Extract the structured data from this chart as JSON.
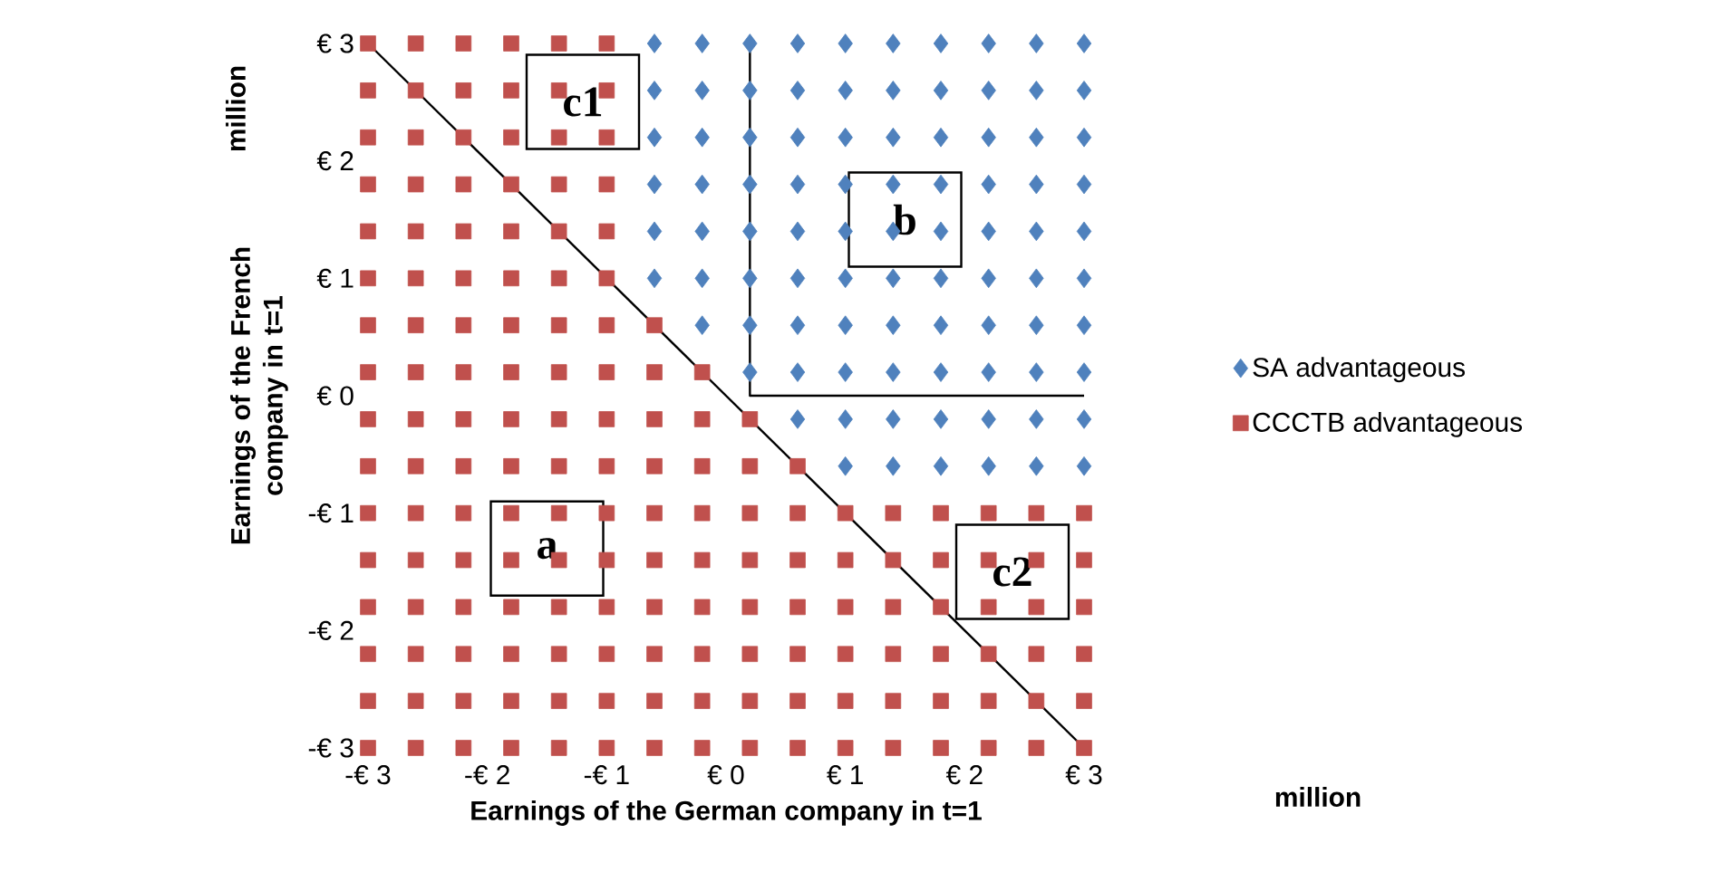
{
  "chart_data": {
    "type": "scatter",
    "xlabel": "Earnings of the German company in t=1",
    "ylabel": "Earnings of the French company in t=1",
    "xlim": [
      -3,
      3
    ],
    "ylim": [
      -3,
      3
    ],
    "xticks": [
      {
        "value": -3,
        "label": "-€ 3"
      },
      {
        "value": -2,
        "label": "-€ 2"
      },
      {
        "value": -1,
        "label": "-€ 1"
      },
      {
        "value": 0,
        "label": "€ 0"
      },
      {
        "value": 1,
        "label": "€ 1"
      },
      {
        "value": 2,
        "label": "€ 2"
      },
      {
        "value": 3,
        "label": "€ 3"
      }
    ],
    "yticks": [
      {
        "value": -3,
        "label": "-€ 3"
      },
      {
        "value": -2,
        "label": "-€ 2"
      },
      {
        "value": -1,
        "label": "-€ 1"
      },
      {
        "value": 0,
        "label": "€ 0"
      },
      {
        "value": 1,
        "label": "€ 1"
      },
      {
        "value": 2,
        "label": "€ 2"
      },
      {
        "value": 3,
        "label": "€ 3"
      }
    ],
    "legend": "right",
    "series": [
      {
        "name": "SA advantageous",
        "color": "#4f81bd",
        "marker": "diamond",
        "x": [
          -0.6,
          -0.6,
          -0.6,
          -0.6,
          -0.6,
          -0.6,
          -0.2,
          -0.2,
          -0.2,
          -0.2,
          -0.2,
          -0.2,
          -0.2,
          0.2,
          0.2,
          0.2,
          0.2,
          0.2,
          0.2,
          0.2,
          0.2,
          0.6,
          0.6,
          0.6,
          0.6,
          0.6,
          0.6,
          0.6,
          0.6,
          0.6,
          1,
          1,
          1,
          1,
          1,
          1,
          1,
          1,
          1,
          1,
          1.4,
          1.4,
          1.4,
          1.4,
          1.4,
          1.4,
          1.4,
          1.4,
          1.4,
          1.4,
          1.8,
          1.8,
          1.8,
          1.8,
          1.8,
          1.8,
          1.8,
          1.8,
          1.8,
          1.8,
          2.2,
          2.2,
          2.2,
          2.2,
          2.2,
          2.2,
          2.2,
          2.2,
          2.2,
          2.2,
          2.6,
          2.6,
          2.6,
          2.6,
          2.6,
          2.6,
          2.6,
          2.6,
          2.6,
          2.6,
          3,
          3,
          3,
          3,
          3,
          3,
          3,
          3,
          3,
          3
        ],
        "values": [
          1,
          1.4,
          1.8,
          2.2,
          2.6,
          3,
          0.6,
          1,
          1.4,
          1.8,
          2.2,
          2.6,
          3,
          0.2,
          0.6,
          1,
          1.4,
          1.8,
          2.2,
          2.6,
          3,
          -0.2,
          0.2,
          0.6,
          1,
          1.4,
          1.8,
          2.2,
          2.6,
          3,
          -0.6,
          -0.2,
          0.2,
          0.6,
          1,
          1.4,
          1.8,
          2.2,
          2.6,
          3,
          -0.6,
          -0.2,
          0.2,
          0.6,
          1,
          1.4,
          1.8,
          2.2,
          2.6,
          3,
          -0.6,
          -0.2,
          0.2,
          0.6,
          1,
          1.4,
          1.8,
          2.2,
          2.6,
          3,
          -0.6,
          -0.2,
          0.2,
          0.6,
          1,
          1.4,
          1.8,
          2.2,
          2.6,
          3,
          -0.6,
          -0.2,
          0.2,
          0.6,
          1,
          1.4,
          1.8,
          2.2,
          2.6,
          3,
          -0.6,
          -0.2,
          0.2,
          0.6,
          1,
          1.4,
          1.8,
          2.2,
          2.6,
          3
        ]
      },
      {
        "name": "CCCTB advantageous",
        "color": "#c0504d",
        "marker": "square",
        "x": [
          -3,
          -3,
          -3,
          -3,
          -3,
          -3,
          -3,
          -3,
          -3,
          -3,
          -3,
          -3,
          -3,
          -3,
          -3,
          -3,
          -2.6,
          -2.6,
          -2.6,
          -2.6,
          -2.6,
          -2.6,
          -2.6,
          -2.6,
          -2.6,
          -2.6,
          -2.6,
          -2.6,
          -2.6,
          -2.6,
          -2.6,
          -2.6,
          -2.2,
          -2.2,
          -2.2,
          -2.2,
          -2.2,
          -2.2,
          -2.2,
          -2.2,
          -2.2,
          -2.2,
          -2.2,
          -2.2,
          -2.2,
          -2.2,
          -2.2,
          -2.2,
          -1.8,
          -1.8,
          -1.8,
          -1.8,
          -1.8,
          -1.8,
          -1.8,
          -1.8,
          -1.8,
          -1.8,
          -1.8,
          -1.8,
          -1.8,
          -1.8,
          -1.8,
          -1.8,
          -1.4,
          -1.4,
          -1.4,
          -1.4,
          -1.4,
          -1.4,
          -1.4,
          -1.4,
          -1.4,
          -1.4,
          -1.4,
          -1.4,
          -1.4,
          -1.4,
          -1.4,
          -1.4,
          -1,
          -1,
          -1,
          -1,
          -1,
          -1,
          -1,
          -1,
          -1,
          -1,
          -1,
          -1,
          -1,
          -1,
          -1,
          -1,
          -0.6,
          -0.6,
          -0.6,
          -0.6,
          -0.6,
          -0.6,
          -0.6,
          -0.6,
          -0.6,
          -0.6,
          -0.2,
          -0.2,
          -0.2,
          -0.2,
          -0.2,
          -0.2,
          -0.2,
          -0.2,
          -0.2,
          0.2,
          0.2,
          0.2,
          0.2,
          0.2,
          0.2,
          0.2,
          0.2,
          0.6,
          0.6,
          0.6,
          0.6,
          0.6,
          0.6,
          0.6,
          1,
          1,
          1,
          1,
          1,
          1,
          1.4,
          1.4,
          1.4,
          1.4,
          1.4,
          1.4,
          1.8,
          1.8,
          1.8,
          1.8,
          1.8,
          1.8,
          2.2,
          2.2,
          2.2,
          2.2,
          2.2,
          2.2,
          2.6,
          2.6,
          2.6,
          2.6,
          2.6,
          2.6,
          3,
          3,
          3,
          3,
          3,
          3
        ],
        "values": [
          -3,
          -2.6,
          -2.2,
          -1.8,
          -1.4,
          -1,
          -0.6,
          -0.2,
          0.2,
          0.6,
          1,
          1.4,
          1.8,
          2.2,
          2.6,
          3,
          -3,
          -2.6,
          -2.2,
          -1.8,
          -1.4,
          -1,
          -0.6,
          -0.2,
          0.2,
          0.6,
          1,
          1.4,
          1.8,
          2.2,
          2.6,
          3,
          -3,
          -2.6,
          -2.2,
          -1.8,
          -1.4,
          -1,
          -0.6,
          -0.2,
          0.2,
          0.6,
          1,
          1.4,
          1.8,
          2.2,
          2.6,
          3,
          -3,
          -2.6,
          -2.2,
          -1.8,
          -1.4,
          -1,
          -0.6,
          -0.2,
          0.2,
          0.6,
          1,
          1.4,
          1.8,
          2.2,
          2.6,
          3,
          -3,
          -2.6,
          -2.2,
          -1.8,
          -1.4,
          -1,
          -0.6,
          -0.2,
          0.2,
          0.6,
          1,
          1.4,
          1.8,
          2.2,
          2.6,
          3,
          -3,
          -2.6,
          -2.2,
          -1.8,
          -1.4,
          -1,
          -0.6,
          -0.2,
          0.2,
          0.6,
          1,
          1.4,
          1.8,
          2.2,
          2.6,
          3,
          -3,
          -2.6,
          -2.2,
          -1.8,
          -1.4,
          -1,
          -0.6,
          -0.2,
          0.2,
          0.6,
          -3,
          -2.6,
          -2.2,
          -1.8,
          -1.4,
          -1,
          -0.6,
          -0.2,
          0.2,
          -3,
          -2.6,
          -2.2,
          -1.8,
          -1.4,
          -1,
          -0.6,
          -0.2,
          -3,
          -2.6,
          -2.2,
          -1.8,
          -1.4,
          -1,
          -0.6,
          -3,
          -2.6,
          -2.2,
          -1.8,
          -1.4,
          -1,
          -3,
          -2.6,
          -2.2,
          -1.8,
          -1.4,
          -1,
          -3,
          -2.6,
          -2.2,
          -1.8,
          -1.4,
          -1,
          -3,
          -2.6,
          -2.2,
          -1.8,
          -1.4,
          -1,
          -3,
          -2.6,
          -2.2,
          -1.8,
          -1.4,
          -1,
          -3,
          -2.6,
          -2.2,
          -1.8,
          -1.4,
          -1
        ]
      },
      {
        "type": "line",
        "color": "#000000",
        "marker": "none",
        "x": [
          -3,
          3
        ],
        "values": [
          3,
          -3
        ]
      },
      {
        "type": "line",
        "color": "#000000",
        "marker": "none",
        "x": [
          0.2,
          0.2,
          3
        ],
        "values": [
          3,
          0,
          0
        ]
      }
    ],
    "annotations": [
      "c1",
      "b",
      "a",
      "c2",
      "million",
      "million"
    ]
  }
}
